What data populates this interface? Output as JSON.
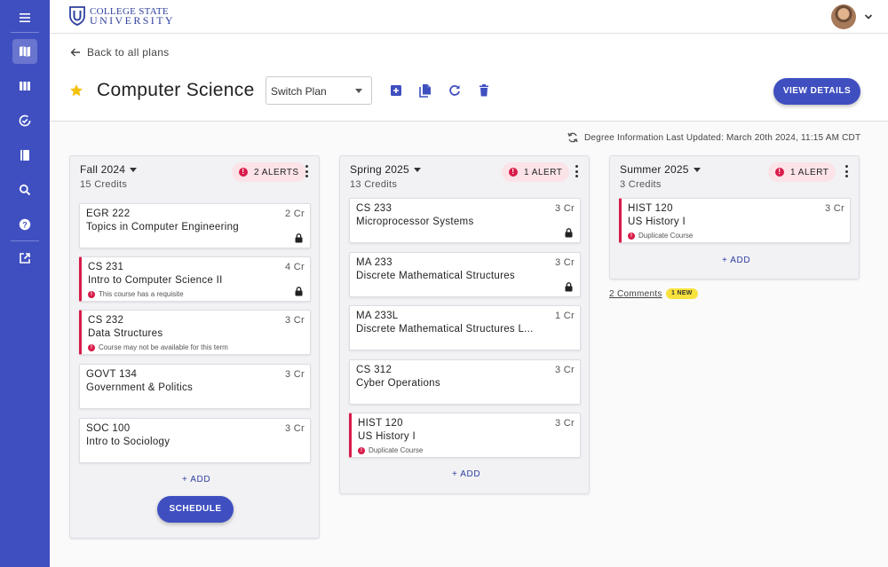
{
  "app": {
    "logo_line1": "COLLEGE STATE",
    "logo_line2": "UNIVERSITY"
  },
  "sidebar": {
    "items": [
      {
        "icon": "menu-icon"
      },
      {
        "icon": "map-icon",
        "active": true
      },
      {
        "icon": "columns-icon"
      },
      {
        "icon": "check-circle-icon"
      },
      {
        "icon": "book-icon"
      },
      {
        "icon": "search-icon"
      },
      {
        "icon": "help-icon"
      },
      {
        "icon": "external-link-icon"
      }
    ]
  },
  "header": {
    "back_label": "Back to all plans",
    "plan_title": "Computer Science",
    "switch_plan_placeholder": "Switch Plan",
    "view_details_label": "VIEW DETAILS",
    "last_updated": "Degree Information Last Updated: March 20th 2024, 11:15 AM CDT"
  },
  "terms": [
    {
      "name": "Fall 2024",
      "credits": "15 Credits",
      "alerts": "2 ALERTS",
      "add_label": "+ ADD",
      "schedule_label": "SCHEDULE",
      "courses": [
        {
          "code": "EGR 222",
          "credits": "2 Cr",
          "title": "Topics in Computer Engineering",
          "alert": "",
          "locked": true
        },
        {
          "code": "CS 231",
          "credits": "4 Cr",
          "title": "Intro to Computer Science II",
          "alert": "This course has a requisite",
          "locked": true
        },
        {
          "code": "CS 232",
          "credits": "3 Cr",
          "title": "Data Structures",
          "alert": "Course may not be available for this term",
          "locked": false
        },
        {
          "code": "GOVT 134",
          "credits": "3 Cr",
          "title": "Government & Politics",
          "alert": "",
          "locked": false
        },
        {
          "code": "SOC 100",
          "credits": "3 Cr",
          "title": "Intro to Sociology",
          "alert": "",
          "locked": false
        }
      ]
    },
    {
      "name": "Spring 2025",
      "credits": "13 Credits",
      "alerts": "1 ALERT",
      "add_label": "+ ADD",
      "courses": [
        {
          "code": "CS 233",
          "credits": "3 Cr",
          "title": "Microprocessor Systems",
          "alert": "",
          "locked": true
        },
        {
          "code": "MA 233",
          "credits": "3 Cr",
          "title": "Discrete Mathematical Structures",
          "alert": "",
          "locked": true
        },
        {
          "code": "MA 233L",
          "credits": "1 Cr",
          "title": "Discrete Mathematical Structures L...",
          "alert": "",
          "locked": false
        },
        {
          "code": "CS 312",
          "credits": "3 Cr",
          "title": "Cyber Operations",
          "alert": "",
          "locked": false
        },
        {
          "code": "HIST 120",
          "credits": "3 Cr",
          "title": "US History I",
          "alert": "Duplicate Course",
          "locked": false
        }
      ]
    },
    {
      "name": "Summer 2025",
      "credits": "3 Credits",
      "alerts": "1 ALERT",
      "add_label": "+ ADD",
      "courses": [
        {
          "code": "HIST 120",
          "credits": "3 Cr",
          "title": "US History I",
          "alert": "Duplicate Course",
          "locked": false
        }
      ]
    }
  ],
  "comments": {
    "label": "2 Comments",
    "new_badge": "1 NEW"
  },
  "colors": {
    "primary": "#3f4fc0",
    "alert": "#d81b49",
    "new_badge": "#f9e23c"
  }
}
